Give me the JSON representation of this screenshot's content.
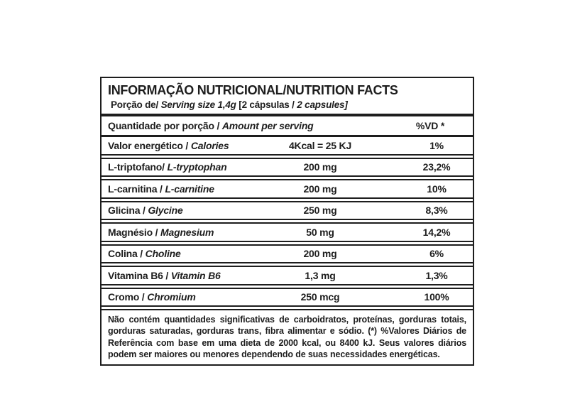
{
  "label": {
    "title": "INFORMAÇÃO NUTRICIONAL/NUTRITION FACTS",
    "serving": {
      "pt1": "Porção de/ ",
      "en1": "Serving size 1,4g ",
      "pt2": "[2 cápsulas / ",
      "en2": "2 capsules]"
    },
    "columns": {
      "amount_pt": "Quantidade por porção / ",
      "amount_en": "Amount per serving",
      "dv": "%VD *"
    },
    "rows": [
      {
        "pt": "Valor energético / ",
        "en": "Calories",
        "amount": "4Kcal = 25 KJ",
        "dv": "1%"
      },
      {
        "pt": "L-triptofano/ ",
        "en": "L-tryptophan",
        "amount": "200 mg",
        "dv": "23,2%"
      },
      {
        "pt": "L-carnitina / ",
        "en": "L-carnitine",
        "amount": "200 mg",
        "dv": "10%"
      },
      {
        "pt": "Glicina / ",
        "en": "Glycine",
        "amount": "250 mg",
        "dv": "8,3%"
      },
      {
        "pt": "Magnésio / ",
        "en": "Magnesium",
        "amount": "50 mg",
        "dv": "14,2%"
      },
      {
        "pt": "Colina / ",
        "en": "Choline",
        "amount": "200 mg",
        "dv": "6%"
      },
      {
        "pt": "Vitamina B6 / ",
        "en": "Vitamin B6",
        "amount": "1,3 mg",
        "dv": "1,3%"
      },
      {
        "pt": "Cromo / ",
        "en": "Chromium",
        "amount": "250 mcg",
        "dv": "100%"
      }
    ],
    "footnote": "Não contém quantidades significativas de carboidratos, proteínas, gorduras totais, gorduras saturadas, gorduras trans, fibra alimentar e sódio. (*) %Valores Diários de Referência com base em uma dieta de 2000 kcal, ou 8400 kJ. Seus valores diários podem ser maiores ou menores dependendo de suas necessidades energéticas."
  },
  "colors": {
    "ink": "#1d1d1d",
    "background": "#ffffff"
  }
}
